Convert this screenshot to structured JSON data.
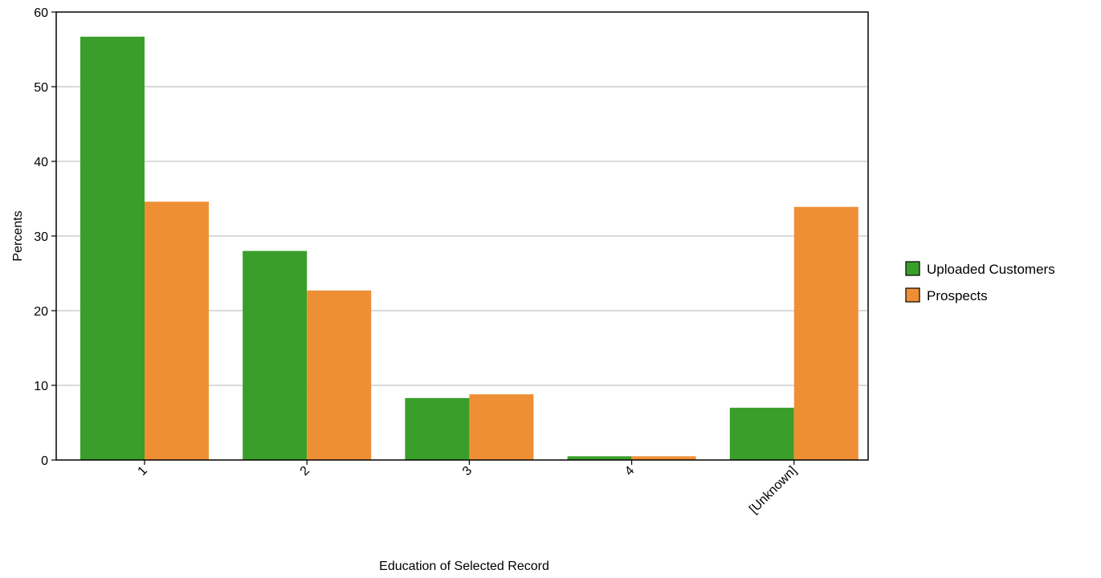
{
  "chart_data": {
    "type": "bar",
    "title": "",
    "xlabel": "Education of Selected Record",
    "ylabel": "Percents",
    "categories": [
      "1",
      "2",
      "3",
      "4",
      "[Unknown]"
    ],
    "series": [
      {
        "name": "Uploaded Customers",
        "color": "#3a9e2a",
        "values": [
          56.7,
          28.0,
          8.3,
          0.5,
          7.0
        ]
      },
      {
        "name": "Prospects",
        "color": "#ef8f35",
        "values": [
          34.6,
          22.7,
          8.8,
          0.5,
          33.9
        ]
      }
    ],
    "ylim": [
      0,
      60
    ],
    "yticks": [
      0,
      10,
      20,
      30,
      40,
      50,
      60
    ],
    "grid": true,
    "legend_position": "right",
    "x_tick_rotation": "rotated"
  }
}
